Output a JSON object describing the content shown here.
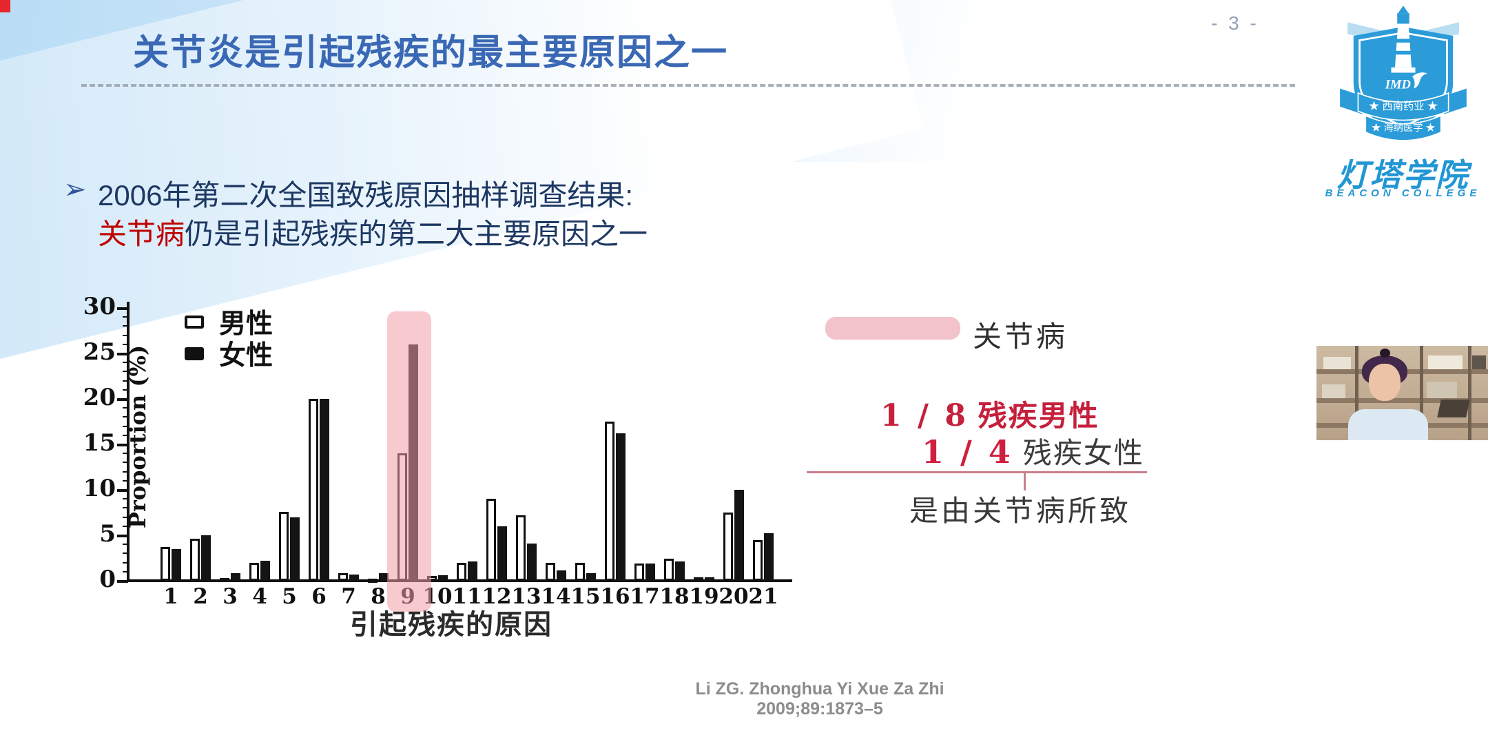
{
  "page": {
    "number": "- 3 -"
  },
  "title": "关节炎是引起残疾的最主要原因之一",
  "bullet": {
    "arrow": "➢",
    "line1": "2006年第二次全国致残原因抽样调查结果:",
    "line2_red": "关节病",
    "line2_rest": "仍是引起残疾的第二大主要原因之一"
  },
  "chart_data": {
    "type": "bar",
    "title": "",
    "xlabel": "引起残疾的原因",
    "ylabel": "Proportion (%)",
    "ylim": [
      0,
      30
    ],
    "yticks": [
      0,
      5,
      10,
      15,
      20,
      25,
      30
    ],
    "grid": false,
    "legend_position": "top-left",
    "categories": [
      "1",
      "2",
      "3",
      "4",
      "5",
      "6",
      "7",
      "8",
      "9",
      "10",
      "11",
      "12",
      "13",
      "14",
      "15",
      "16",
      "17",
      "18",
      "19",
      "20",
      "21"
    ],
    "series": [
      {
        "name": "男性",
        "style": "open",
        "values": [
          3.7,
          4.6,
          0.3,
          2.0,
          7.6,
          20.0,
          0.8,
          0.2,
          14.0,
          0.5,
          2.0,
          9.0,
          7.2,
          2.0,
          2.0,
          17.5,
          1.9,
          2.4,
          0.4,
          7.5,
          4.5
        ]
      },
      {
        "name": "女性",
        "style": "filled",
        "values": [
          3.5,
          5.0,
          0.8,
          2.2,
          7.0,
          20.0,
          0.7,
          0.8,
          26.0,
          0.6,
          2.1,
          6.0,
          4.1,
          1.1,
          0.8,
          16.2,
          1.9,
          2.1,
          0.4,
          10.0,
          5.2
        ]
      }
    ],
    "highlighted_category": "9",
    "highlight_color": "#f3a0aa"
  },
  "annotation": {
    "highlight_label": "关节病",
    "stat1_num": "1 / 8",
    "stat1_text": "残疾男性",
    "stat2_num": "1 / 4",
    "stat2_text": "残疾女性",
    "conclusion": "是由关节病所致"
  },
  "citation": "Li ZG. Zhonghua Yi Xue Za Zhi 2009;89:1873–5",
  "logo": {
    "imd": "IMD",
    "ribbon1": "★ 西南药业 ★",
    "ribbon2": "★ 海纳医学 ★",
    "name_cn": "灯塔学院",
    "name_en": "BEACON COLLEGE"
  },
  "colors": {
    "title_blue": "#3a68b4",
    "body_navy": "#1d3863",
    "accent_red": "#c00000",
    "stat_crimson": "#c5203c",
    "highlight_pink": "#f2c3ca",
    "logo_blue": "#2b9cd8"
  }
}
